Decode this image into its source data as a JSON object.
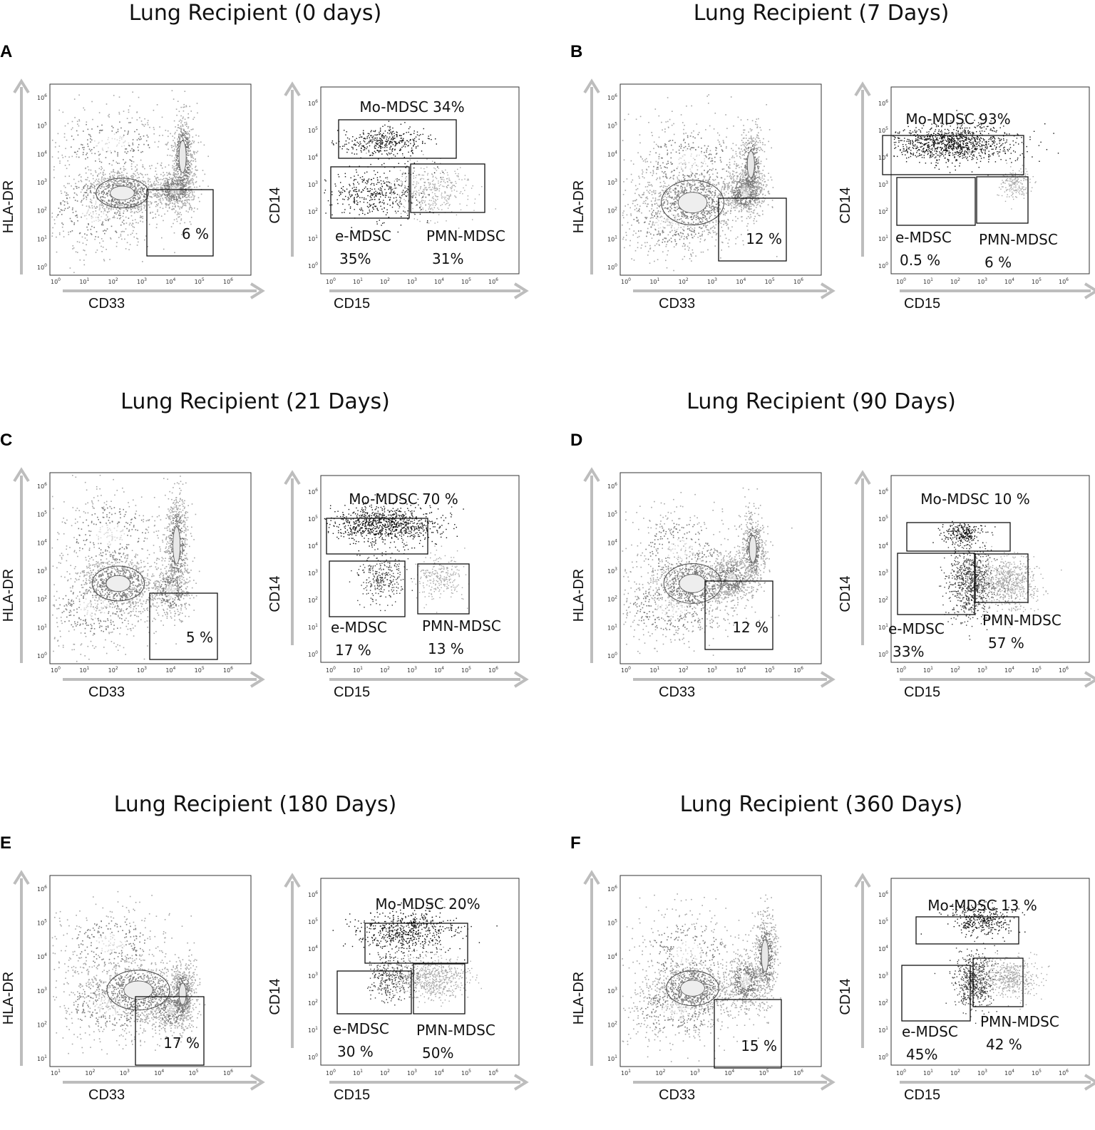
{
  "chart_data": [
    {
      "type": "scatter",
      "panel": "A",
      "title": "Lung Recipient (0 days)",
      "plot1": {
        "xlabel": "CD33",
        "ylabel": "HLA-DR",
        "tick_exponents": [
          "0",
          "1",
          "2",
          "3",
          "4",
          "5",
          "6"
        ],
        "gate": {
          "label": "6 %",
          "value": 6
        }
      },
      "plot2": {
        "xlabel": "CD15",
        "ylabel": "CD14",
        "tick_exponents": [
          "0",
          "1",
          "2",
          "3",
          "4",
          "5",
          "6"
        ],
        "gates": [
          {
            "name": "Mo-MDSC",
            "label": "Mo-MDSC 34%",
            "value": 34
          },
          {
            "name": "e-MDSC",
            "label": "e-MDSC",
            "value_label": "35%",
            "value": 35
          },
          {
            "name": "PMN-MDSC",
            "label": "PMN-MDSC",
            "value_label": "31%",
            "value": 31
          }
        ]
      }
    },
    {
      "type": "scatter",
      "panel": "B",
      "title": "Lung Recipient (7 Days)",
      "plot1": {
        "xlabel": "CD33",
        "ylabel": "HLA-DR",
        "tick_exponents": [
          "0",
          "1",
          "2",
          "3",
          "4",
          "5",
          "6"
        ],
        "gate": {
          "label": "12 %",
          "value": 12
        }
      },
      "plot2": {
        "xlabel": "CD15",
        "ylabel": "CD14",
        "tick_exponents": [
          "0",
          "1",
          "2",
          "3",
          "4",
          "5",
          "6"
        ],
        "gates": [
          {
            "name": "Mo-MDSC",
            "label": "Mo-MDSC 93%",
            "value": 93
          },
          {
            "name": "e-MDSC",
            "label": "e-MDSC",
            "value_label": "0.5 %",
            "value": 0.5
          },
          {
            "name": "PMN-MDSC",
            "label": "PMN-MDSC",
            "value_label": "6  %",
            "value": 6
          }
        ]
      }
    },
    {
      "type": "scatter",
      "panel": "C",
      "title": "Lung Recipient (21 Days)",
      "plot1": {
        "xlabel": "CD33",
        "ylabel": "HLA-DR",
        "tick_exponents": [
          "0",
          "1",
          "2",
          "3",
          "4",
          "5",
          "6"
        ],
        "gate": {
          "label": "5 %",
          "value": 5
        }
      },
      "plot2": {
        "xlabel": "CD15",
        "ylabel": "CD14",
        "tick_exponents": [
          "0",
          "1",
          "2",
          "3",
          "4",
          "5",
          "6"
        ],
        "gates": [
          {
            "name": "Mo-MDSC",
            "label": "Mo-MDSC 70 %",
            "value": 70
          },
          {
            "name": "e-MDSC",
            "label": "e-MDSC",
            "value_label": "17 %",
            "value": 17
          },
          {
            "name": "PMN-MDSC",
            "label": "PMN-MDSC",
            "value_label": "13 %",
            "value": 13
          }
        ]
      }
    },
    {
      "type": "scatter",
      "panel": "D",
      "title": "Lung Recipient (90 Days)",
      "plot1": {
        "xlabel": "CD33",
        "ylabel": "HLA-DR",
        "tick_exponents": [
          "0",
          "1",
          "2",
          "3",
          "4",
          "5",
          "6"
        ],
        "gate": {
          "label": "12 %",
          "value": 12
        }
      },
      "plot2": {
        "xlabel": "CD15",
        "ylabel": "CD14",
        "tick_exponents": [
          "0",
          "1",
          "2",
          "3",
          "4",
          "5",
          "6"
        ],
        "gates": [
          {
            "name": "Mo-MDSC",
            "label": "Mo-MDSC 10 %",
            "value": 10
          },
          {
            "name": "e-MDSC",
            "label": "e-MDSC",
            "value_label": "33%",
            "value": 33
          },
          {
            "name": "PMN-MDSC",
            "label": "PMN-MDSC",
            "value_label": "57  %",
            "value": 57
          }
        ]
      }
    },
    {
      "type": "scatter",
      "panel": "E",
      "title": "Lung Recipient (180 Days)",
      "plot1": {
        "xlabel": "CD33",
        "ylabel": "HLA-DR",
        "tick_exponents": [
          "1",
          "2",
          "3",
          "4",
          "5",
          "6"
        ],
        "gate": {
          "label": "17 %",
          "value": 17
        }
      },
      "plot2": {
        "xlabel": "CD15",
        "ylabel": "CD14",
        "tick_exponents": [
          "0",
          "1",
          "2",
          "3",
          "4",
          "5",
          "6"
        ],
        "gates": [
          {
            "name": "Mo-MDSC",
            "label": "Mo-MDSC 20%",
            "value": 20
          },
          {
            "name": "e-MDSC",
            "label": "e-MDSC",
            "value_label": "30 %",
            "value": 30
          },
          {
            "name": "PMN-MDSC",
            "label": "PMN-MDSC",
            "value_label": "50%",
            "value": 50
          }
        ]
      }
    },
    {
      "type": "scatter",
      "panel": "F",
      "title": "Lung Recipient (360 Days)",
      "plot1": {
        "xlabel": "CD33",
        "ylabel": "HLA-DR",
        "tick_exponents": [
          "1",
          "2",
          "3",
          "4",
          "5",
          "6"
        ],
        "gate": {
          "label": "15 %",
          "value": 15
        }
      },
      "plot2": {
        "xlabel": "CD15",
        "ylabel": "CD14",
        "tick_exponents": [
          "0",
          "1",
          "2",
          "3",
          "4",
          "5",
          "6"
        ],
        "gates": [
          {
            "name": "Mo-MDSC",
            "label": "Mo-MDSC 13 %",
            "value": 13
          },
          {
            "name": "e-MDSC",
            "label": "e-MDSC",
            "value_label": "45%",
            "value": 45
          },
          {
            "name": "PMN-MDSC",
            "label": "PMN-MDSC",
            "value_label": "42 %",
            "value": 42
          }
        ]
      }
    }
  ],
  "tick_base": "10",
  "colors": {
    "scatter_dark": "#111111",
    "scatter_mid": "#7a7a7a",
    "scatter_light": "#a6a6a6",
    "arrow": "#bdbdbd"
  }
}
